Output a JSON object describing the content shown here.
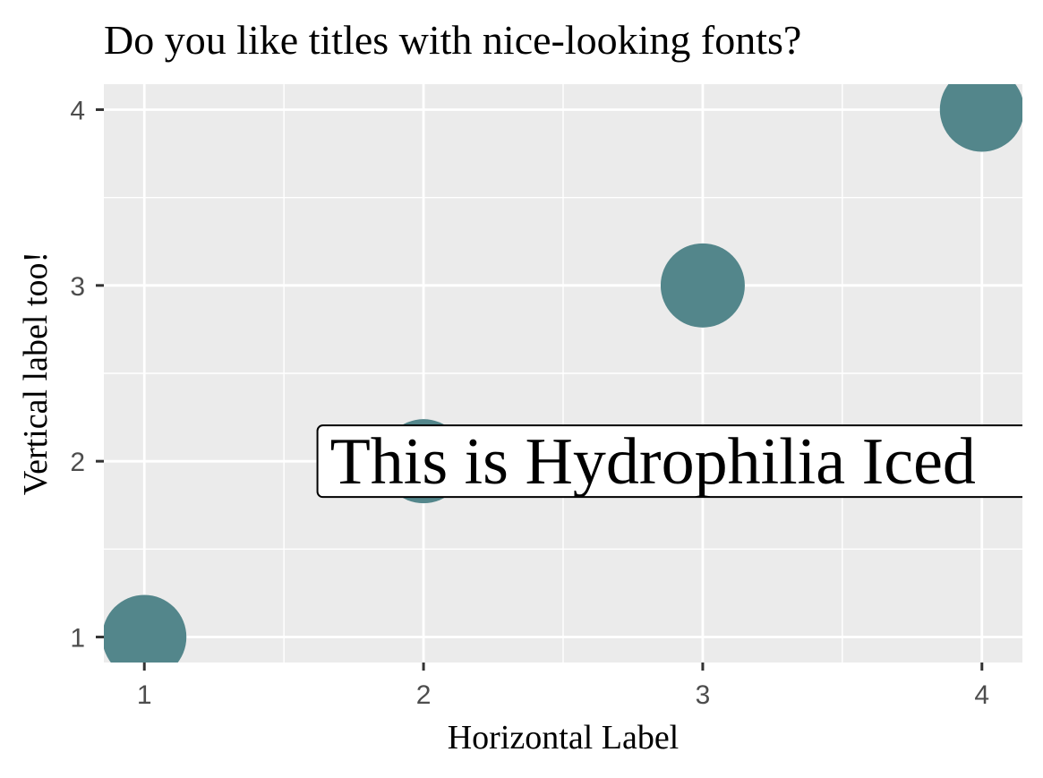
{
  "chart_data": {
    "type": "scatter",
    "title": "Do you like titles with nice-looking fonts?",
    "xlabel": "Horizontal Label",
    "ylabel": "Vertical label too!",
    "xlim": [
      0.855,
      4.145
    ],
    "ylim": [
      0.855,
      4.145
    ],
    "x_ticks": [
      "1",
      "2",
      "3",
      "4"
    ],
    "y_ticks": [
      "1",
      "2",
      "3",
      "4"
    ],
    "grid": true,
    "background": "#ebebeb",
    "point_color": "#53868b",
    "points": [
      {
        "x": 1,
        "y": 1
      },
      {
        "x": 2,
        "y": 2
      },
      {
        "x": 3,
        "y": 3
      },
      {
        "x": 4,
        "y": 4
      }
    ],
    "annotation": {
      "text": "This is Hydrophilia Iced",
      "x": 1.62,
      "y": 2
    }
  }
}
